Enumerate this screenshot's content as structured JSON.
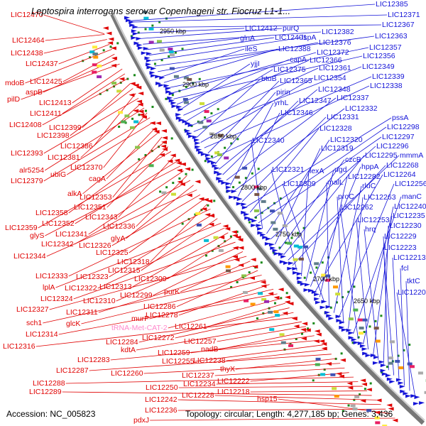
{
  "title": "Leptospira interrogans serovar Copenhageni str. Fiocruz L1-1...",
  "footer": {
    "accession": "Accession: NC_005823",
    "summary": "Topology: circular; Length: 4,277,185 bp; Genes: 3,436"
  },
  "colors": {
    "left_strand": "#e00000",
    "right_strand": "#1414d8",
    "backbone": "#999999",
    "tick": "#1a8a1a",
    "trna_label": "#ff88cc"
  },
  "kbp_labels": [
    "2950 kbp",
    "2900 kbp",
    "2850 kbp",
    "2800 kbp",
    "2750 kbp",
    "2700 kbp",
    "2650 kbp"
  ],
  "left_labels": [
    "LIC12470",
    "LIC12464",
    "LIC12438",
    "LIC12437",
    "mdoB",
    "LIC12425",
    "aspB",
    "pilD",
    "LIC12413",
    "LIC12411",
    "LIC12408",
    "LIC12399",
    "LIC12398",
    "LIC12386",
    "LIC12393",
    "LIC12381",
    "alr5254",
    "LIC12370",
    "LIC12379",
    "ubiG",
    "cagA",
    "alkA",
    "LIC12353",
    "LIC12358",
    "LIC12351",
    "LIC12359",
    "LIC12343",
    "LIC12352",
    "glyS",
    "LIC12341",
    "LIC12336",
    "LIC12342",
    "glyA",
    "LIC12344",
    "LIC12326",
    "LIC12325",
    "LIC12318",
    "LIC12333",
    "LIC12323",
    "LIC12315",
    "lplA",
    "LIC12322",
    "LIC12313",
    "LIC12300",
    "LIC12324",
    "LIC12310",
    "LIC12299",
    "LIC12327",
    "purK",
    "LIC12311",
    "LIC12286",
    "sch1",
    "glcK",
    "LIC12278",
    "murF",
    "LIC12314",
    "tRNA-Met-CAT-2",
    "LIC12261",
    "LIC12284",
    "LIC12272",
    "LIC12316",
    "kdtA",
    "LIC12257",
    "nadB",
    "LIC12259",
    "LIC12283",
    "LIC12255",
    "LIC12238",
    "LIC12287",
    "thyX",
    "LIC12260",
    "LIC12237",
    "LIC12222",
    "LIC12288",
    "LIC12234",
    "LIC12250",
    "LIC12218",
    "LIC12289",
    "LIC12228",
    "LIC12242",
    "LIC12236",
    "hsp15",
    "pdxJ"
  ],
  "right_labels": [
    "LIC12385",
    "LIC12371",
    "LIC12367",
    "LIC12412",
    "purQ",
    "LIC12382",
    "glnA",
    "LIC12401",
    "lspA",
    "LIC12363",
    "LIC12376",
    "ileS",
    "LIC12388",
    "LIC12357",
    "LIC12372",
    "LIC12356",
    "capA",
    "yjjI",
    "LIC12366",
    "LIC12375",
    "LIC12361",
    "LIC12349",
    "btuB",
    "LIC12354",
    "LIC12339",
    "LIC12365",
    "LIC12338",
    "pirin",
    "LIC12348",
    "LIC12347",
    "LIC12337",
    "yrhL",
    "LIC12332",
    "LIC12346",
    "LIC12331",
    "pssA",
    "LIC12328",
    "LIC12298",
    "LIC12297",
    "LIC12340",
    "LIC12320",
    "LIC12296",
    "LIC12319",
    "czcB",
    "LIC12295",
    "mmmA",
    "LIC12268",
    "LIC12321",
    "lexA",
    "ugd",
    "hppA",
    "LIC12264",
    "LIC12282",
    "LIC12309",
    "malL",
    "rluC",
    "LIC12256",
    "proC",
    "LIC12263",
    "manC",
    "LIC12262",
    "LIC12240",
    "LIC12253",
    "LIC12235",
    "hrq",
    "LIC12230",
    "LIC12229",
    "LIC12223",
    "LIC12213",
    "fcl",
    "tktC",
    "LIC12206"
  ]
}
